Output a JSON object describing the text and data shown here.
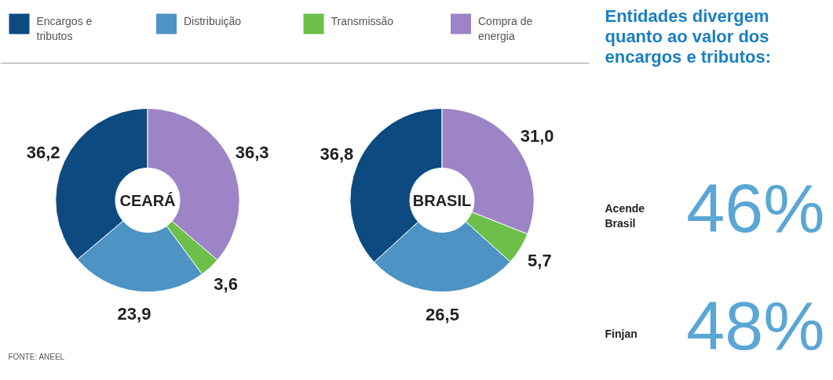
{
  "chart_data": [
    {
      "type": "donut",
      "categories": [
        "Encargos e tributos",
        "Distribuição",
        "Transmissão",
        "Compra de energia"
      ],
      "colors": [
        "#0d4a80",
        "#4d93c4",
        "#6cc04a",
        "#9c84c6"
      ],
      "legend": "top",
      "annotations": [
        "FONTE: ANEEL"
      ],
      "series": [
        {
          "name": "CEARÁ",
          "values": [
            36.2,
            23.9,
            3.6,
            36.3
          ],
          "value_labels": [
            "36,2",
            "23,9",
            "3,6",
            "36,3"
          ]
        },
        {
          "name": "BRASIL",
          "values": [
            36.8,
            26.5,
            5.7,
            31.0
          ],
          "value_labels": [
            "36,8",
            "26,5",
            "5,7",
            "31,0"
          ]
        }
      ]
    },
    {
      "type": "other",
      "title": "Entidades divergem quanto ao valor dos encargos e tributos:",
      "annotations": [
        "Acende Brasil",
        "46%",
        "Finjan",
        "48%"
      ]
    }
  ]
}
